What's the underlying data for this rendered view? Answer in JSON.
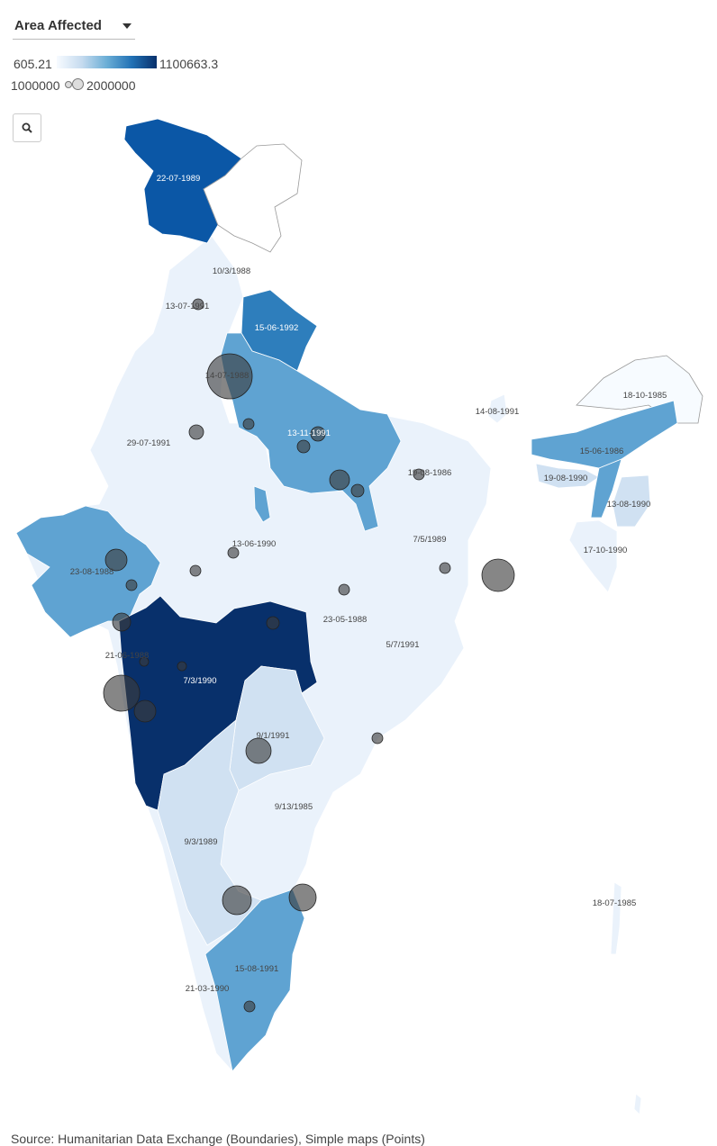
{
  "controls": {
    "dropdown_label": "Area Affected"
  },
  "color_legend": {
    "min": "605.21",
    "max": "1100663.3",
    "colors": [
      "#f7fbff",
      "#c6dbef",
      "#6baed6",
      "#2171b5",
      "#08306b"
    ]
  },
  "size_legend": {
    "min": "1000000",
    "max": "2000000"
  },
  "search": {
    "icon": "search-icon"
  },
  "map": {
    "labels": [
      "22-07-1989",
      "10/3/1988",
      "13-07-1991",
      "15-06-1992",
      "14-07-1988",
      "29-07-1991",
      "13-11-1991",
      "14-08-1991",
      "18-10-1985",
      "15-06-1986",
      "19-08-1990",
      "13-08-1990",
      "17-10-1990",
      "19-08-1986",
      "7/5/1989",
      "13-06-1990",
      "23-08-1988",
      "23-05-1988",
      "5/7/1991",
      "21-06-1988",
      "7/3/1990",
      "9/1/1991",
      "9/13/1985",
      "9/3/1989",
      "18-07-1985",
      "15-08-1991",
      "21-03-1990"
    ],
    "colors": {
      "dark": "#08306b",
      "blue1": "#0b57a6",
      "blue2": "#2e7ebc",
      "mid": "#5fa3d2",
      "light": "#d0e1f2",
      "pale": "#eaf2fb",
      "outline": "#999999"
    }
  },
  "footer": {
    "source": "Source: Humanitarian Data Exchange (Boundaries), Simple maps (Points)"
  }
}
